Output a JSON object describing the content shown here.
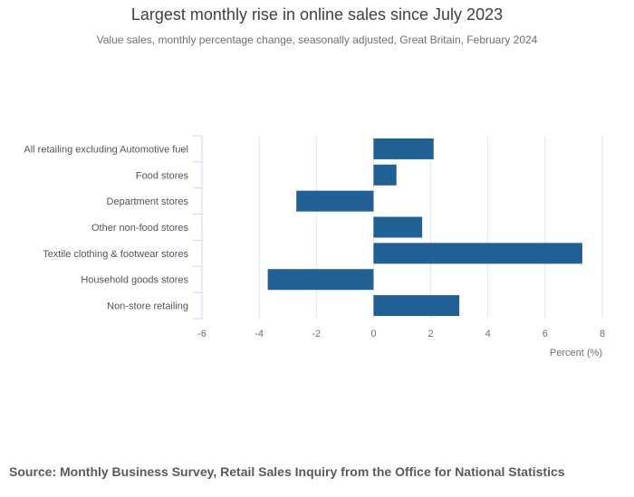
{
  "colors": {
    "bar": "#206095",
    "grid": "#e6e6e6",
    "axis_text": "#707070",
    "title_text": "#414042",
    "source_text": "#5a5a5a",
    "tick_line": "#ccd6eb"
  },
  "chart_data": {
    "type": "bar",
    "orientation": "horizontal",
    "title": "Largest monthly rise in online sales since July 2023",
    "subtitle": "Value sales, monthly percentage change, seasonally adjusted, Great Britain, February 2024",
    "xlabel": "Percent (%)",
    "ylabel": "",
    "xlim": [
      -6,
      8
    ],
    "xticks": [
      -6,
      -4,
      -2,
      0,
      2,
      4,
      6,
      8
    ],
    "grid": true,
    "categories": [
      "All retailing excluding Automotive fuel",
      "Food stores",
      "Department stores",
      "Other non-food stores",
      "Textile clothing & footwear stores",
      "Household goods stores",
      "Non-store retailing"
    ],
    "series": [
      {
        "name": "Monthly percentage change",
        "values": [
          2.1,
          0.8,
          -2.7,
          1.7,
          7.3,
          -3.7,
          3.0
        ]
      }
    ]
  },
  "source": "Source: Monthly Business Survey, Retail Sales Inquiry from the Office for National Statistics"
}
